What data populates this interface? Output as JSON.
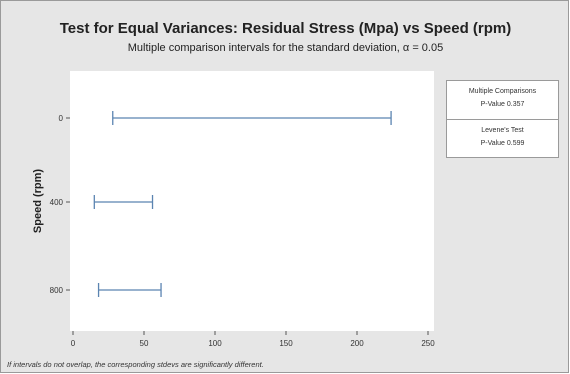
{
  "chart_data": {
    "type": "interval",
    "title": "Test for Equal Variances: Residual Stress (Mpa) vs Speed (rpm)",
    "subtitle": "Multiple comparison intervals for the standard deviation, α = 0.05",
    "ylabel": "Speed (rpm)",
    "xlabel": "",
    "xlim": [
      0,
      250
    ],
    "xticks": [
      0,
      50,
      100,
      150,
      200,
      250
    ],
    "categories": [
      "0",
      "400",
      "800"
    ],
    "intervals": [
      {
        "category": "0",
        "lower": 28,
        "upper": 224
      },
      {
        "category": "400",
        "lower": 15,
        "upper": 56
      },
      {
        "category": "800",
        "lower": 18,
        "upper": 62
      }
    ],
    "interval_color": "#5b84b1",
    "grid": false
  },
  "stats": {
    "sections": [
      {
        "heading": "Multiple Comparisons",
        "pvalue": "P-Value   0.357"
      },
      {
        "heading": "Levene's Test",
        "pvalue": "P-Value   0.599"
      }
    ]
  },
  "footnote": "If intervals do not overlap, the corresponding stdevs are significantly different."
}
